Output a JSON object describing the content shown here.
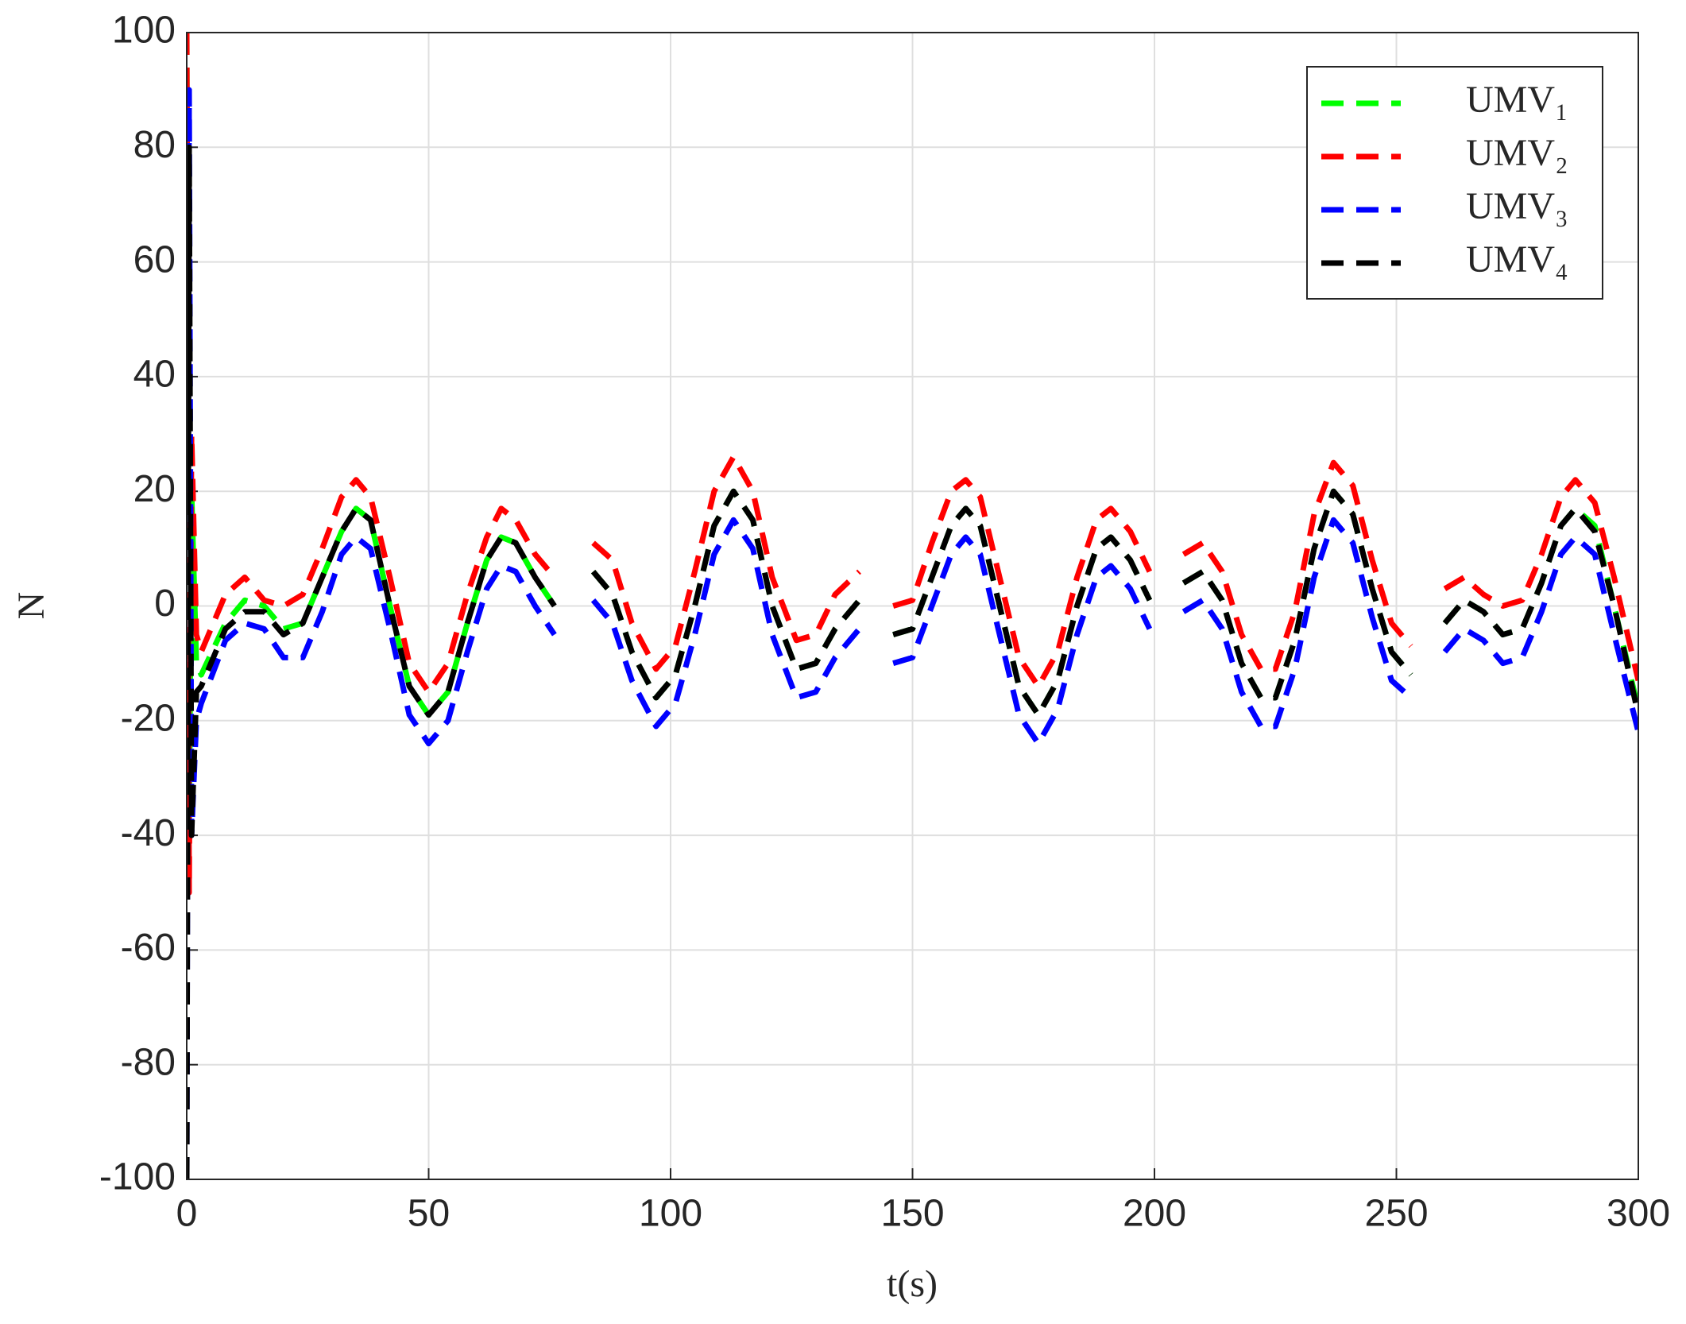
{
  "chart_data": {
    "type": "line",
    "xlabel": "t(s)",
    "ylabel": "N",
    "x": [
      0,
      0.5,
      1,
      2,
      3,
      8,
      12,
      16,
      20,
      24,
      28,
      32,
      35,
      38,
      42,
      46,
      50,
      54,
      58,
      62,
      65,
      68,
      72,
      76,
      80,
      84,
      88,
      92,
      97,
      101,
      105,
      109,
      113,
      117,
      121,
      126,
      130,
      134,
      139,
      143,
      146,
      150,
      154,
      158,
      161,
      164,
      168,
      172,
      176,
      180,
      184,
      188,
      191,
      195,
      199,
      203,
      206,
      210,
      214,
      218,
      222,
      225,
      229,
      233,
      237,
      241,
      245,
      249,
      253,
      257,
      260,
      264,
      268,
      272,
      276,
      280,
      284,
      287,
      291,
      295,
      300
    ],
    "series": [
      {
        "name": "UMV₁",
        "color": "#00ff00",
        "values": [
          100,
          -40,
          20,
          -10,
          -12,
          -3,
          1,
          0,
          -4,
          -3,
          5,
          13,
          17,
          15,
          0,
          -14,
          -19,
          -15,
          -3,
          8,
          12,
          11,
          5,
          0,
          null,
          6,
          2,
          -8,
          -16,
          -12,
          0,
          14,
          20,
          15,
          0,
          -11,
          -10,
          -4,
          1,
          null,
          -5,
          -4,
          5,
          14,
          17,
          14,
          0,
          -14,
          -19,
          -13,
          0,
          10,
          12,
          8,
          1,
          null,
          4,
          6,
          1,
          -10,
          -16,
          -16,
          -6,
          10,
          20,
          16,
          3,
          -8,
          -12,
          null,
          -3,
          1,
          -1,
          -5,
          -4,
          4,
          14,
          17,
          14,
          0,
          -18
        ]
      },
      {
        "name": "UMV₂",
        "color": "#ff0000",
        "values": [
          100,
          -50,
          30,
          -5,
          -8,
          2,
          5,
          1,
          0,
          2,
          10,
          19,
          22,
          19,
          5,
          -10,
          -15,
          -10,
          2,
          12,
          17,
          15,
          9,
          5,
          null,
          11,
          8,
          -3,
          -11,
          -7,
          6,
          20,
          26,
          20,
          5,
          -6,
          -5,
          2,
          6,
          null,
          0,
          1,
          11,
          20,
          22,
          19,
          5,
          -9,
          -14,
          -8,
          5,
          15,
          17,
          13,
          6,
          null,
          9,
          11,
          6,
          -5,
          -11,
          -11,
          -1,
          16,
          25,
          21,
          8,
          -3,
          -7,
          null,
          3,
          5,
          2,
          0,
          1,
          9,
          19,
          22,
          18,
          5,
          -13
        ]
      },
      {
        "name": "UMV₃",
        "color": "#0000ff",
        "values": [
          -100,
          90,
          -40,
          -20,
          -17,
          -6,
          -3,
          -4,
          -9,
          -9,
          -1,
          9,
          12,
          10,
          -4,
          -19,
          -24,
          -20,
          -8,
          3,
          7,
          6,
          0,
          -5,
          null,
          1,
          -3,
          -13,
          -21,
          -17,
          -5,
          9,
          15,
          10,
          -5,
          -16,
          -15,
          -9,
          -4,
          null,
          -10,
          -9,
          0,
          9,
          12,
          9,
          -5,
          -19,
          -24,
          -18,
          -5,
          5,
          7,
          3,
          -4,
          null,
          -1,
          1,
          -4,
          -15,
          -21,
          -21,
          -11,
          5,
          15,
          11,
          -2,
          -13,
          -16,
          null,
          -8,
          -4,
          -6,
          -10,
          -9,
          -1,
          9,
          12,
          9,
          -5,
          -22
        ]
      },
      {
        "name": "UMV₄",
        "color": "#000000",
        "values": [
          -100,
          80,
          -40,
          -15,
          -14,
          -4,
          -1,
          -1,
          -5,
          -3,
          5,
          13,
          17,
          15,
          0,
          -14,
          -19,
          -15,
          -3,
          8,
          12,
          11,
          5,
          0,
          null,
          6,
          2,
          -8,
          -16,
          -12,
          0,
          14,
          20,
          15,
          0,
          -11,
          -10,
          -4,
          1,
          null,
          -5,
          -4,
          5,
          14,
          17,
          14,
          0,
          -14,
          -19,
          -13,
          0,
          10,
          12,
          8,
          1,
          null,
          4,
          6,
          1,
          -10,
          -16,
          -16,
          -6,
          10,
          20,
          16,
          3,
          -8,
          -12,
          null,
          -3,
          1,
          -1,
          -5,
          -4,
          4,
          14,
          17,
          13,
          0,
          -19
        ]
      }
    ],
    "xlim": [
      0,
      300
    ],
    "xticks": [
      0,
      50,
      100,
      150,
      200,
      250,
      300
    ],
    "ylim": [
      -100,
      100
    ],
    "yticks": [
      -100,
      -80,
      -60,
      -40,
      -20,
      0,
      20,
      40,
      60,
      80,
      100
    ],
    "grid": true,
    "legend": "upper right"
  }
}
